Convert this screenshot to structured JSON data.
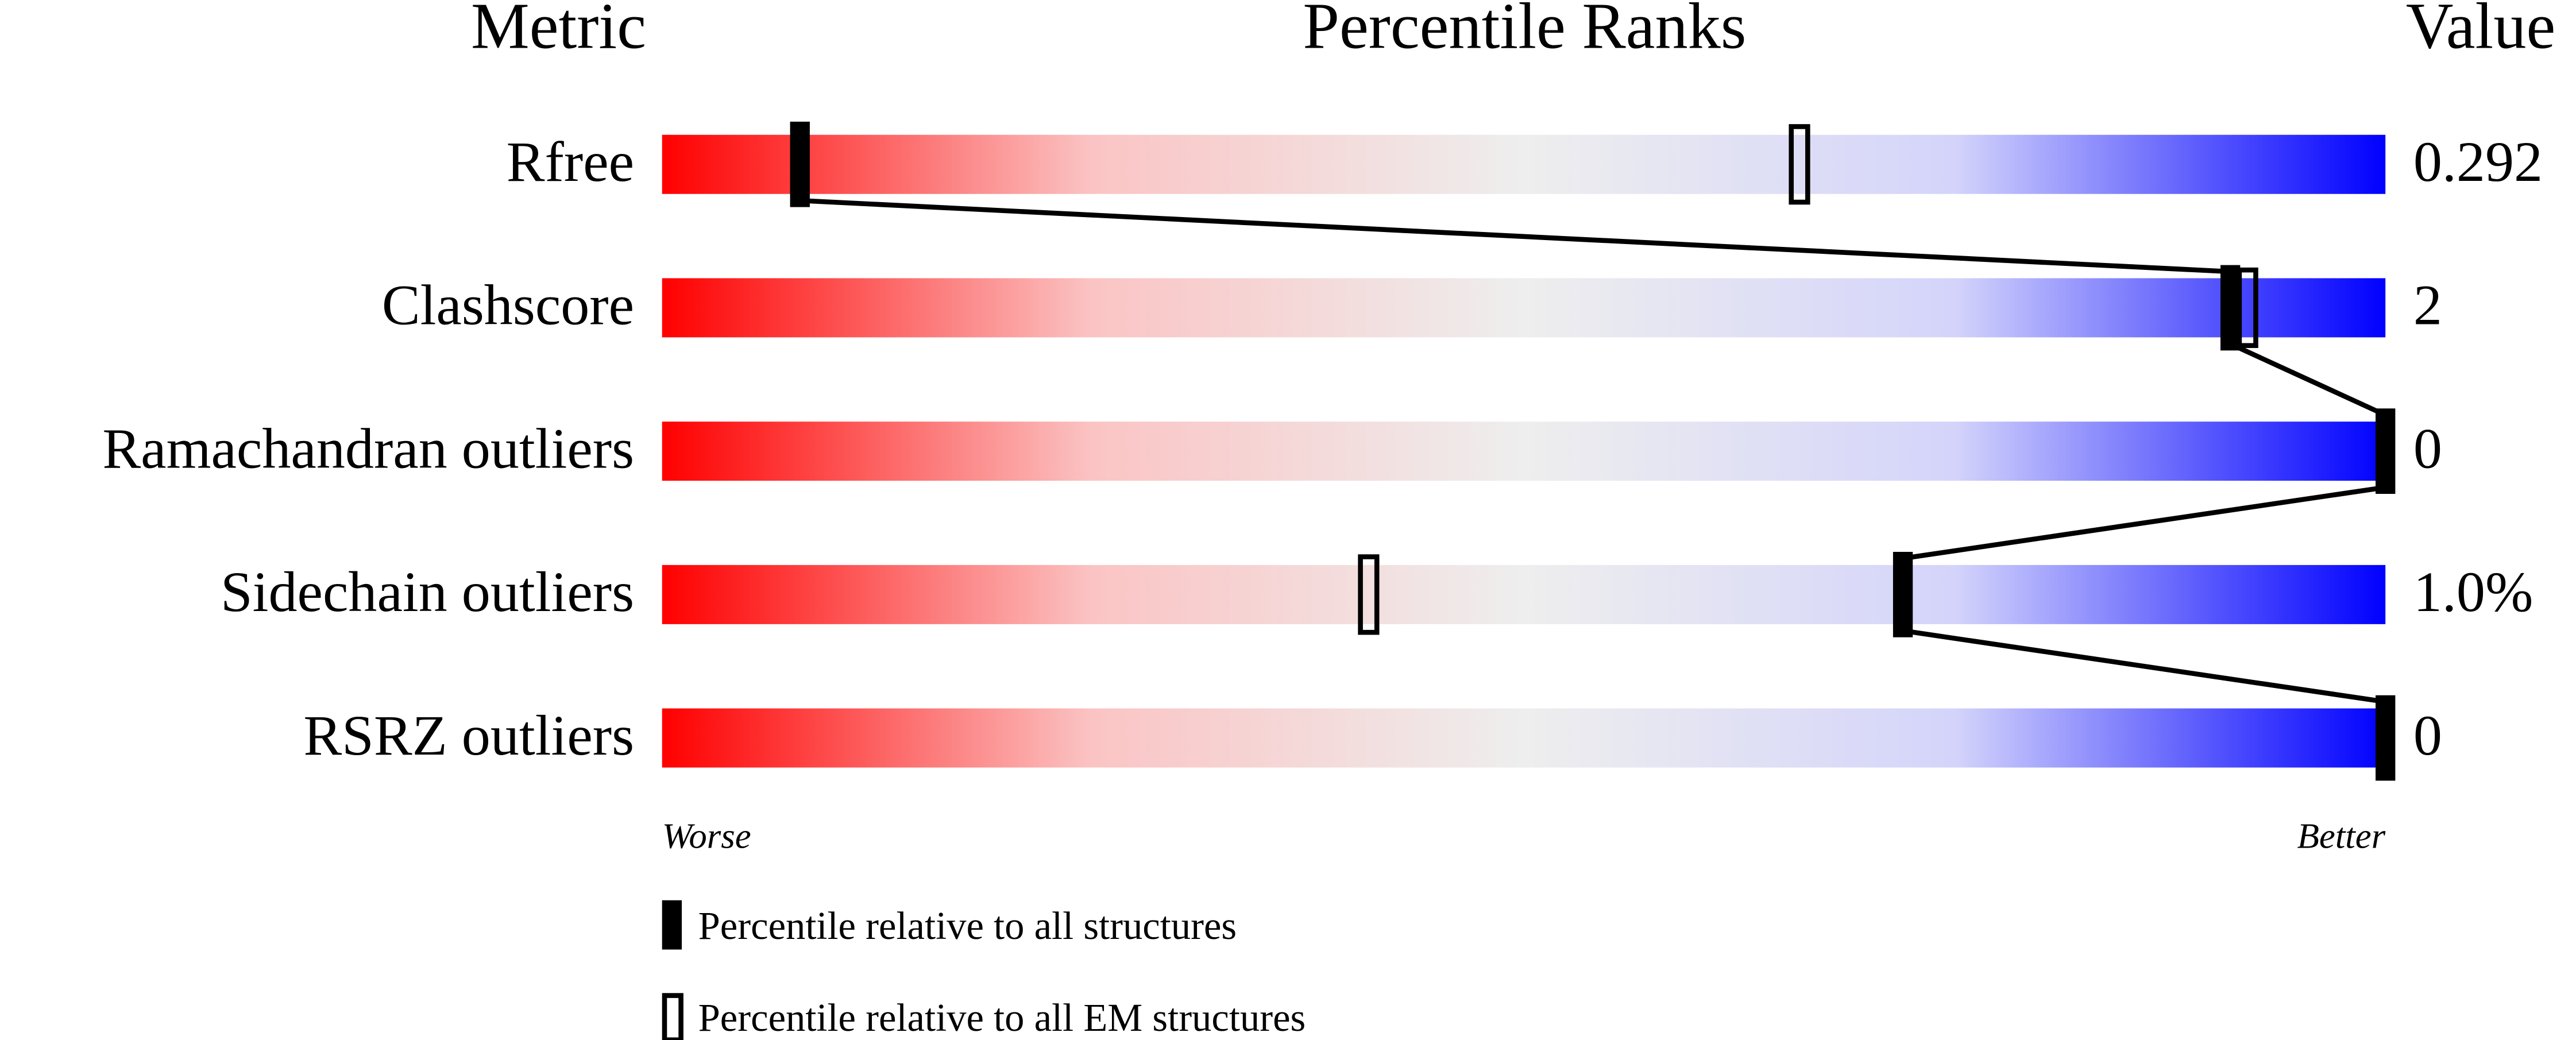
{
  "chart_data": {
    "type": "percentile",
    "headers": [
      "Metric",
      "Percentile Ranks",
      "Value"
    ],
    "categories": [
      "Rfree",
      "Clashscore",
      "Ramachandran outliers",
      "Sidechain outliers",
      "RSRZ outliers"
    ],
    "metric_values": [
      "0.292",
      "2",
      "0",
      "1.0%",
      "0"
    ],
    "series": [
      {
        "name": "Percentile relative to all structures",
        "color": "#000000",
        "values": [
          8,
          91,
          100,
          72,
          100
        ]
      },
      {
        "name": "Percentile relative to all EM structures",
        "color": "#000000",
        "values": [
          66,
          92,
          null,
          41,
          null
        ]
      }
    ],
    "xlim": [
      0,
      100
    ],
    "scale_ends": [
      "Worse",
      "Better"
    ],
    "gradient": [
      "#ff0000",
      "#fbc4c4",
      "#eeeeee",
      "#d4d4fb",
      "#0000ff"
    ]
  }
}
